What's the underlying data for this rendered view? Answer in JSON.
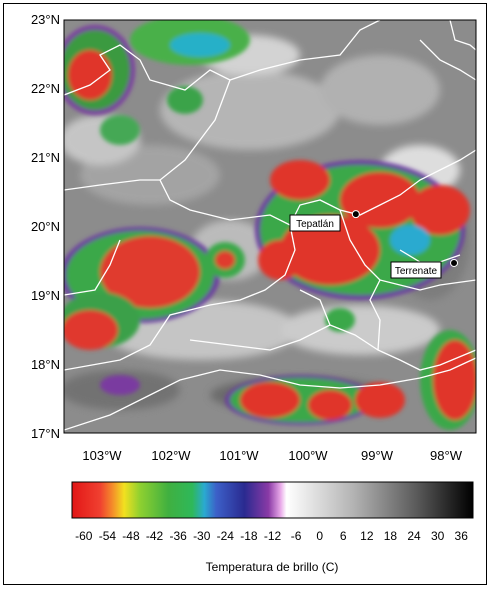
{
  "map": {
    "lat_labels": [
      "23°N",
      "22°N",
      "21°N",
      "20°N",
      "19°N",
      "18°N",
      "17°N"
    ],
    "lat_values": [
      23,
      22,
      21,
      20,
      19,
      18,
      17
    ],
    "lon_labels": [
      "103°W",
      "102°W",
      "101°W",
      "100°W",
      "99°W",
      "98°W"
    ],
    "lon_values": [
      -103,
      -102,
      -101,
      -100,
      -99,
      -98
    ],
    "extent": {
      "lon": [
        -103.6,
        -97.6
      ],
      "lat": [
        17,
        23
      ]
    },
    "places": [
      {
        "name": "Tepatlán",
        "lon": -99.35,
        "lat": 20.18
      },
      {
        "name": "Terrenate",
        "lon": -97.92,
        "lat": 19.47
      }
    ]
  },
  "colorbar": {
    "ticks": [
      "-60",
      "-54",
      "-48",
      "-42",
      "-36",
      "-30",
      "-24",
      "-18",
      "-12",
      "-6",
      "0",
      "6",
      "12",
      "18",
      "24",
      "30",
      "36"
    ],
    "title": "Temperatura de brillo (C)",
    "range": [
      -63,
      39
    ]
  }
}
